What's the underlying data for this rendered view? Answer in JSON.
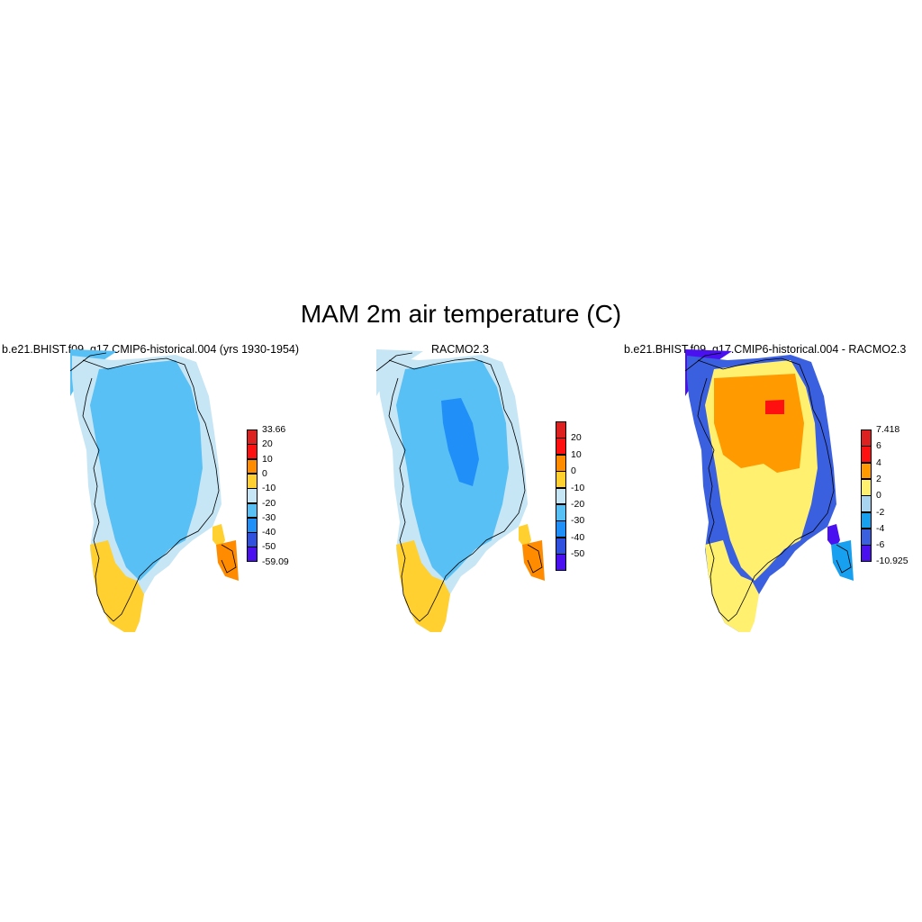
{
  "title": "MAM 2m air temperature (C)",
  "panels": [
    {
      "name": "model",
      "subtitle": "b.e21.BHIST.f09_g17.CMIP6-historical.004 (yrs 1930-1954)",
      "colorbar": {
        "colors": [
          "#dd2020",
          "#ff1010",
          "#ff8c00",
          "#ffd030",
          "#c6e6f5",
          "#58c0f5",
          "#2090f8",
          "#3050e0",
          "#4a10f0"
        ],
        "labels": [
          "33.66",
          "20",
          "10",
          "0",
          "-10",
          "-20",
          "-30",
          "-40",
          "-50",
          "-59.09"
        ]
      }
    },
    {
      "name": "racmo",
      "subtitle": "RACMO2.3",
      "colorbar": {
        "colors": [
          "#dd2020",
          "#ff1010",
          "#ff8c00",
          "#ffd030",
          "#c6e6f5",
          "#58c0f5",
          "#2090f8",
          "#3050e0",
          "#4a10f0"
        ],
        "labels": [
          "20",
          "10",
          "0",
          "-10",
          "-20",
          "-30",
          "-40",
          "-50"
        ]
      }
    },
    {
      "name": "difference",
      "subtitle": "b.e21.BHIST.f09_g17.CMIP6-historical.004 - RACMO2.3",
      "colorbar": {
        "colors": [
          "#dd2020",
          "#ff1010",
          "#ff9a00",
          "#fff070",
          "#a8d4f0",
          "#18a0f0",
          "#3a60e0",
          "#4a10f0"
        ],
        "labels": [
          "7.418",
          "6",
          "4",
          "2",
          "0",
          "-2",
          "-4",
          "-6",
          "-10.925"
        ]
      }
    }
  ]
}
